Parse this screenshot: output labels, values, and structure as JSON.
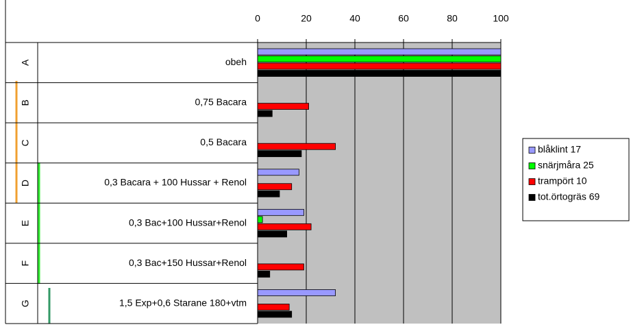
{
  "chart_data": {
    "type": "hbar",
    "row_letters": [
      "A",
      "B",
      "C",
      "D",
      "E",
      "F",
      "G"
    ],
    "categories": [
      "obeh",
      "0,75 Bacara",
      "0,5 Bacara",
      "0,3 Bacara + 100 Hussar + Renol",
      "0,3 Bac+100 Hussar+Renol",
      "0,3 Bac+150 Hussar+Renol",
      "1,5 Exp+0,6 Starane 180+vtm"
    ],
    "series": [
      {
        "name": "blåklint 17",
        "color": "#9999ff",
        "values": [
          100,
          0,
          0,
          17,
          19,
          0,
          32
        ]
      },
      {
        "name": "snärjmåra 25",
        "color": "#00ff00",
        "values": [
          100,
          0,
          0,
          0,
          2,
          0,
          0
        ]
      },
      {
        "name": "trampört 10",
        "color": "#ff0000",
        "values": [
          100,
          21,
          32,
          14,
          22,
          19,
          13
        ]
      },
      {
        "name": "tot.örtogräs 69",
        "color": "#000000",
        "values": [
          100,
          6,
          18,
          9,
          12,
          5,
          14
        ]
      }
    ],
    "xlim": [
      0,
      100
    ],
    "xticks": [
      0,
      20,
      40,
      60,
      80,
      100
    ],
    "grid": true,
    "plot_background": "#c0c0c0",
    "legend": "right"
  }
}
